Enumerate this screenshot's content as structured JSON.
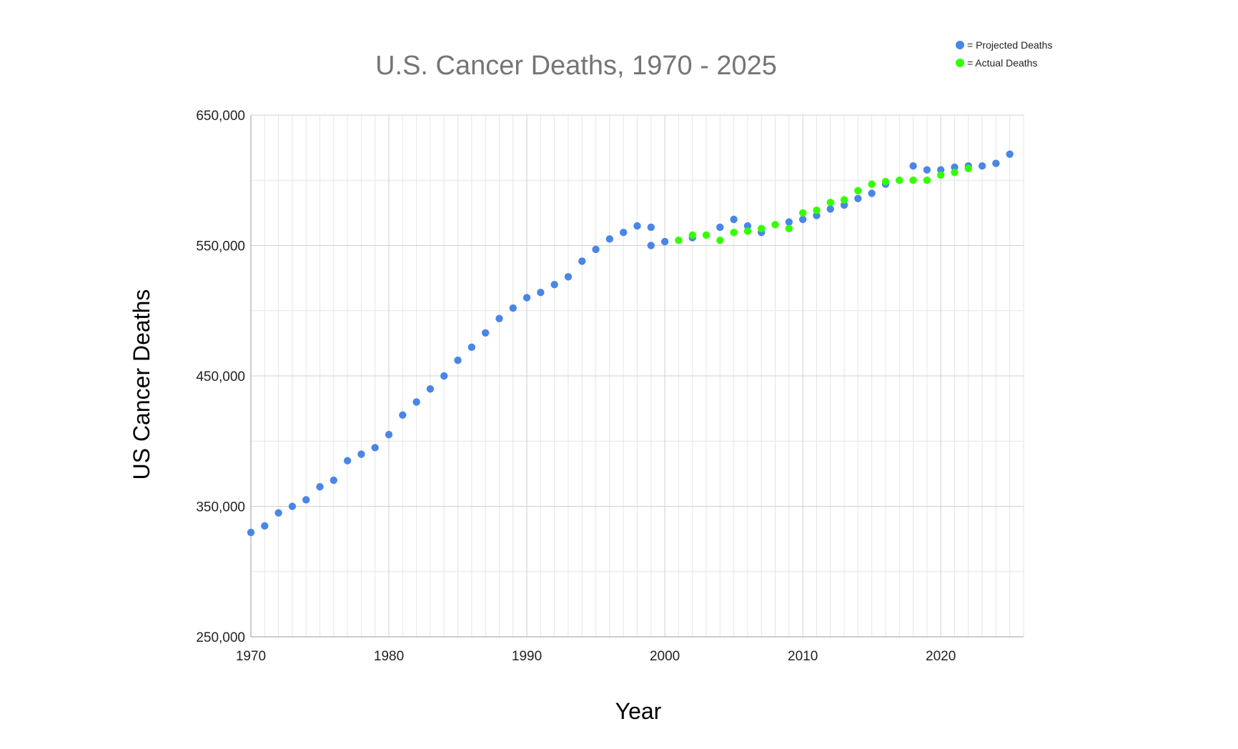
{
  "chart_data": {
    "type": "scatter",
    "title": "U.S. Cancer Deaths, 1970 - 2025",
    "xlabel": "Year",
    "ylabel": "US Cancer Deaths",
    "xlim": [
      1970,
      2026
    ],
    "ylim": [
      250000,
      650000
    ],
    "x_ticks": [
      1970,
      1980,
      1990,
      2000,
      2010,
      2020
    ],
    "x_tick_labels": [
      "1970",
      "1980",
      "1990",
      "2000",
      "2010",
      "2020"
    ],
    "y_ticks": [
      250000,
      350000,
      450000,
      550000,
      650000
    ],
    "y_tick_labels": [
      "250,000",
      "350,000",
      "450,000",
      "550,000",
      "650,000"
    ],
    "grid": true,
    "legend_position": "top-right",
    "series": [
      {
        "name": "= Projected Deaths",
        "color": "#4a86e8",
        "points": [
          [
            1970,
            330000
          ],
          [
            1971,
            335000
          ],
          [
            1972,
            345000
          ],
          [
            1973,
            350000
          ],
          [
            1974,
            355000
          ],
          [
            1975,
            365000
          ],
          [
            1976,
            370000
          ],
          [
            1977,
            385000
          ],
          [
            1978,
            390000
          ],
          [
            1979,
            395000
          ],
          [
            1980,
            405000
          ],
          [
            1981,
            420000
          ],
          [
            1982,
            430000
          ],
          [
            1983,
            440000
          ],
          [
            1984,
            450000
          ],
          [
            1985,
            462000
          ],
          [
            1986,
            472000
          ],
          [
            1987,
            483000
          ],
          [
            1988,
            494000
          ],
          [
            1989,
            502000
          ],
          [
            1990,
            510000
          ],
          [
            1991,
            514000
          ],
          [
            1992,
            520000
          ],
          [
            1993,
            526000
          ],
          [
            1994,
            538000
          ],
          [
            1995,
            547000
          ],
          [
            1996,
            555000
          ],
          [
            1997,
            560000
          ],
          [
            1998,
            565000
          ],
          [
            1999,
            564000
          ],
          [
            1999,
            550000
          ],
          [
            2000,
            553000
          ],
          [
            2002,
            556000
          ],
          [
            2004,
            564000
          ],
          [
            2005,
            570000
          ],
          [
            2006,
            565000
          ],
          [
            2007,
            560000
          ],
          [
            2009,
            568000
          ],
          [
            2010,
            570000
          ],
          [
            2011,
            573000
          ],
          [
            2012,
            578000
          ],
          [
            2013,
            581000
          ],
          [
            2014,
            586000
          ],
          [
            2015,
            590000
          ],
          [
            2016,
            597000
          ],
          [
            2018,
            611000
          ],
          [
            2019,
            608000
          ],
          [
            2020,
            608000
          ],
          [
            2021,
            610000
          ],
          [
            2022,
            611000
          ],
          [
            2023,
            611000
          ],
          [
            2024,
            613000
          ],
          [
            2025,
            620000
          ]
        ]
      },
      {
        "name": "= Actual Deaths",
        "color": "#33ff00",
        "points": [
          [
            2001,
            554000
          ],
          [
            2002,
            558000
          ],
          [
            2003,
            558000
          ],
          [
            2004,
            554000
          ],
          [
            2005,
            560000
          ],
          [
            2006,
            561000
          ],
          [
            2007,
            563000
          ],
          [
            2008,
            566000
          ],
          [
            2009,
            563000
          ],
          [
            2010,
            575000
          ],
          [
            2011,
            577000
          ],
          [
            2012,
            583000
          ],
          [
            2013,
            585000
          ],
          [
            2014,
            592000
          ],
          [
            2015,
            597000
          ],
          [
            2016,
            599000
          ],
          [
            2017,
            600000
          ],
          [
            2018,
            600000
          ],
          [
            2019,
            600000
          ],
          [
            2020,
            604000
          ],
          [
            2021,
            606000
          ],
          [
            2022,
            609000
          ]
        ]
      }
    ]
  }
}
